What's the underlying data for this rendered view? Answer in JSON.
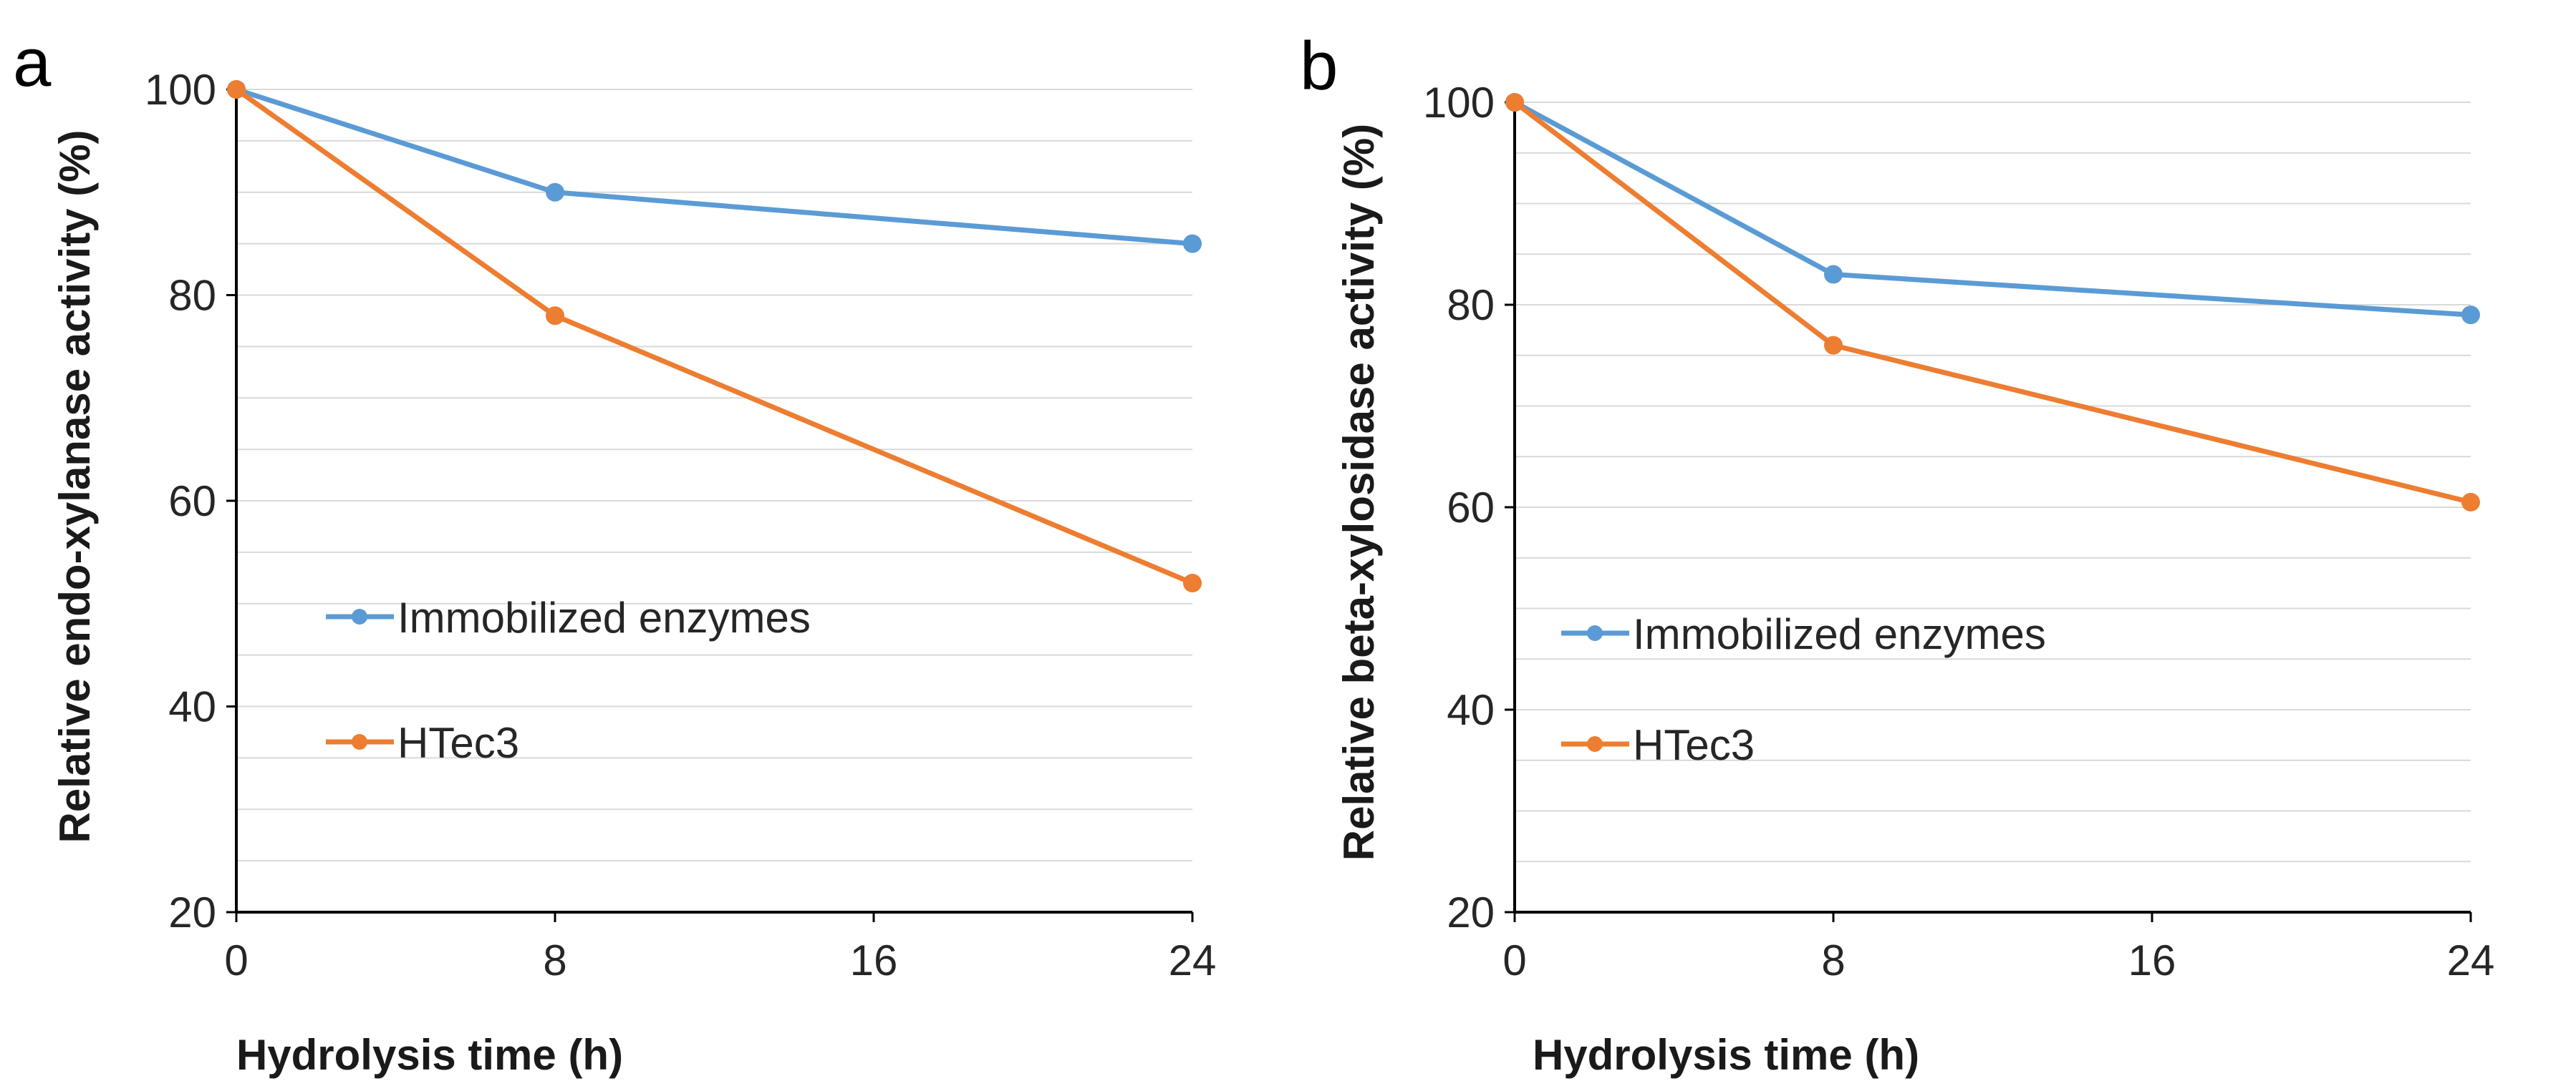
{
  "figure": {
    "panels": [
      "a",
      "b"
    ]
  },
  "colors": {
    "immobilized": "#5b9bd5",
    "htec3": "#ed7d31",
    "axis": "#000000",
    "gridline": "#d9d9d9"
  },
  "chart_data": [
    {
      "panel": "a",
      "type": "line",
      "title": "",
      "xlabel": "Hydrolysis time (h)",
      "ylabel": "Relative endo-xylanase activity (%)",
      "x": [
        0,
        8,
        24
      ],
      "xticks": [
        "0",
        "8",
        "16",
        "24"
      ],
      "xlim": [
        0,
        24
      ],
      "yticks": [
        "20",
        "40",
        "60",
        "80",
        "100"
      ],
      "ylim": [
        20,
        100
      ],
      "grid": true,
      "legend_position": "center-left",
      "series": [
        {
          "name": "Immobilized enzymes",
          "color": "#5b9bd5",
          "values": [
            100,
            90,
            85
          ]
        },
        {
          "name": "HTec3",
          "color": "#ed7d31",
          "values": [
            100,
            78,
            52
          ]
        }
      ]
    },
    {
      "panel": "b",
      "type": "line",
      "title": "",
      "xlabel": "Hydrolysis time (h)",
      "ylabel": "Relative beta-xylosidase activity (%)",
      "x": [
        0,
        8,
        24
      ],
      "xticks": [
        "0",
        "8",
        "16",
        "24"
      ],
      "xlim": [
        0,
        24
      ],
      "yticks": [
        "20",
        "40",
        "60",
        "80",
        "100"
      ],
      "ylim": [
        20,
        100
      ],
      "grid": true,
      "legend_position": "center-left",
      "series": [
        {
          "name": "Immobilized enzymes",
          "color": "#5b9bd5",
          "values": [
            100,
            83,
            79
          ]
        },
        {
          "name": "HTec3",
          "color": "#ed7d31",
          "values": [
            100,
            76,
            60.5
          ]
        }
      ]
    }
  ]
}
